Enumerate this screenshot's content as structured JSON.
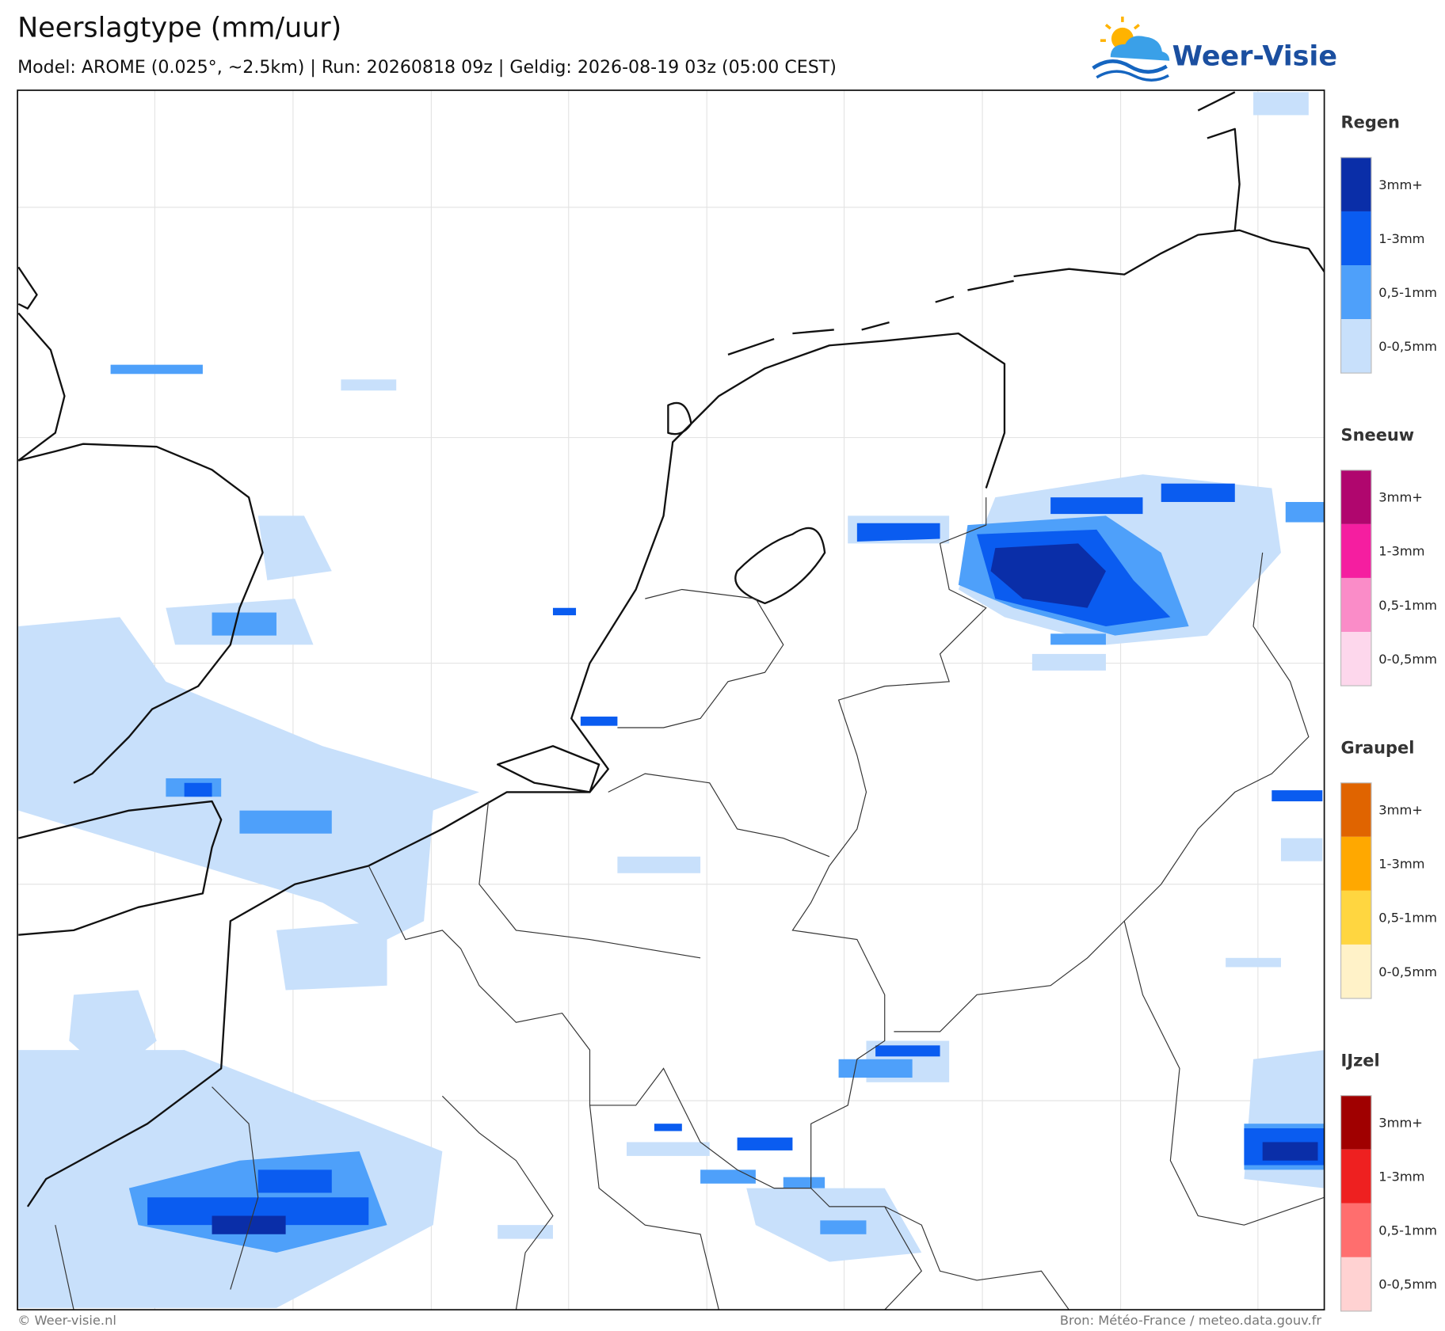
{
  "header": {
    "title": "Neerslagtype (mm/uur)",
    "subtitle": "Model: AROME (0.025°, ~2.5km)  |  Run: 20260818 09z  |  Geldig: 2026-08-19 03z (05:00 CEST)"
  },
  "logo": {
    "text": "Weer-Visie"
  },
  "legend": [
    {
      "title": "Regen",
      "items": [
        {
          "label": "3mm+",
          "color": "#0a2ea8"
        },
        {
          "label": "1-3mm",
          "color": "#0a5cf0"
        },
        {
          "label": "0,5-1mm",
          "color": "#4ea0fa"
        },
        {
          "label": "0-0,5mm",
          "color": "#c8e0fb"
        }
      ]
    },
    {
      "title": "Sneeuw",
      "items": [
        {
          "label": "3mm+",
          "color": "#b0066e"
        },
        {
          "label": "1-3mm",
          "color": "#f51ea0"
        },
        {
          "label": "0,5-1mm",
          "color": "#fa8cc8"
        },
        {
          "label": "0-0,5mm",
          "color": "#fdd7ec"
        }
      ]
    },
    {
      "title": "Graupel",
      "items": [
        {
          "label": "3mm+",
          "color": "#e06400"
        },
        {
          "label": "1-3mm",
          "color": "#ffa800"
        },
        {
          "label": "0,5-1mm",
          "color": "#ffd640"
        },
        {
          "label": "0-0,5mm",
          "color": "#fff2c8"
        }
      ]
    },
    {
      "title": "IJzel",
      "items": [
        {
          "label": "3mm+",
          "color": "#a00000"
        },
        {
          "label": "1-3mm",
          "color": "#ee2020"
        },
        {
          "label": "0,5-1mm",
          "color": "#ff6e6e"
        },
        {
          "label": "0-0,5mm",
          "color": "#ffd2d2"
        }
      ]
    }
  ],
  "footer": {
    "left": "© Weer-visie.nl",
    "right": "Bron: Météo-France / meteo.data.gouv.fr"
  }
}
